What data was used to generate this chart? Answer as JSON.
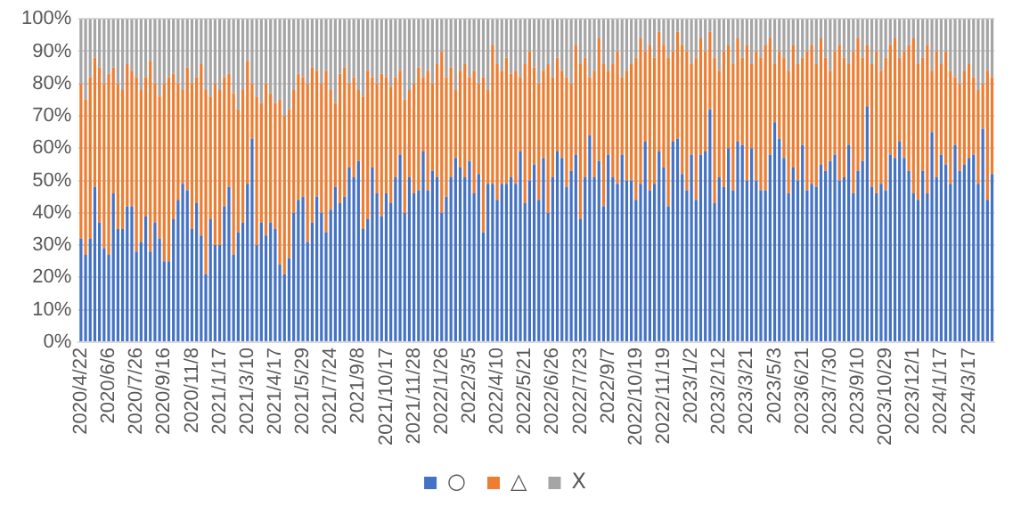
{
  "chart_data": {
    "type": "bar",
    "stacked": true,
    "grid": "y",
    "legend": "bottom",
    "categories": [
      "2020/4/22",
      null,
      null,
      null,
      null,
      null,
      "2020/6/6",
      null,
      null,
      null,
      null,
      null,
      "2020/7/26",
      null,
      null,
      null,
      null,
      null,
      "2020/9/16",
      null,
      null,
      null,
      null,
      null,
      "2020/11/8",
      null,
      null,
      null,
      null,
      null,
      "2021/1/17",
      null,
      null,
      null,
      null,
      null,
      "2021/3/10",
      null,
      null,
      null,
      null,
      null,
      "2021/4/17",
      null,
      null,
      null,
      null,
      null,
      "2021/5/29",
      null,
      null,
      null,
      null,
      null,
      "2021/7/24",
      null,
      null,
      null,
      null,
      null,
      "2021/9/8",
      null,
      null,
      null,
      null,
      null,
      "2021/10/17",
      null,
      null,
      null,
      null,
      null,
      "2021/11/28",
      null,
      null,
      null,
      null,
      null,
      "2022/1/26",
      null,
      null,
      null,
      null,
      null,
      "2022/3/5",
      null,
      null,
      null,
      null,
      null,
      "2022/4/10",
      null,
      null,
      null,
      null,
      null,
      "2022/5/21",
      null,
      null,
      null,
      null,
      null,
      "2022/6/26",
      null,
      null,
      null,
      null,
      null,
      "2022/7/23",
      null,
      null,
      null,
      null,
      null,
      "2022/9/7",
      null,
      null,
      null,
      null,
      null,
      "2022/10/19",
      null,
      null,
      null,
      null,
      null,
      "2022/11/19",
      null,
      null,
      null,
      null,
      null,
      "2023/1/2",
      null,
      null,
      null,
      null,
      null,
      "2023/2/12",
      null,
      null,
      null,
      null,
      null,
      "2023/3/21",
      null,
      null,
      null,
      null,
      null,
      "2023/5/3",
      null,
      null,
      null,
      null,
      null,
      "2023/6/21",
      null,
      null,
      null,
      null,
      null,
      "2023/7/30",
      null,
      null,
      null,
      null,
      null,
      "2023/9/10",
      null,
      null,
      null,
      null,
      null,
      "2023/10/29",
      null,
      null,
      null,
      null,
      null,
      "2023/12/1",
      null,
      null,
      null,
      null,
      null,
      "2024/1/17",
      null,
      null,
      null,
      null,
      null,
      "2024/3/17",
      null,
      null,
      null,
      null,
      null
    ],
    "series": [
      {
        "name": "○",
        "color": "#4472c4",
        "values": [
          32,
          27,
          32,
          48,
          37,
          29,
          27,
          46,
          35,
          35,
          42,
          42,
          28,
          31,
          39,
          28,
          37,
          32,
          25,
          25,
          38,
          44,
          49,
          47,
          35,
          43,
          33,
          21,
          38,
          30,
          30,
          42,
          48,
          27,
          34,
          37,
          49,
          63,
          30,
          37,
          33,
          37,
          35,
          24,
          21,
          26,
          40,
          44,
          45,
          31,
          37,
          45,
          40,
          34,
          41,
          48,
          43,
          45,
          54,
          51,
          56,
          35,
          38,
          54,
          46,
          39,
          46,
          43,
          51,
          58,
          40,
          51,
          46,
          47,
          59,
          47,
          53,
          51,
          40,
          45,
          51,
          57,
          54,
          51,
          56,
          46,
          52,
          34,
          49,
          49,
          44,
          49,
          49,
          51,
          49,
          59,
          43,
          50,
          55,
          44,
          57,
          40,
          51,
          59,
          57,
          48,
          53,
          58,
          38,
          51,
          64,
          51,
          56,
          42,
          58,
          51,
          49,
          58,
          50,
          50,
          44,
          49,
          62,
          47,
          49,
          59,
          54,
          42,
          62,
          63,
          52,
          47,
          58,
          44,
          58,
          59,
          72,
          43,
          51,
          48,
          60,
          47,
          62,
          61,
          50,
          60,
          50,
          47,
          47,
          58,
          68,
          63,
          57,
          46,
          54,
          50,
          61,
          47,
          49,
          48,
          55,
          53,
          56,
          58,
          50,
          51,
          61,
          46,
          53,
          56,
          73,
          48,
          46,
          49,
          47,
          58,
          57,
          62,
          57,
          53,
          46,
          44,
          53,
          46,
          65,
          51,
          58,
          55,
          49,
          61,
          53,
          55,
          57,
          58,
          49,
          66,
          44,
          52
        ]
      },
      {
        "name": "△",
        "color": "#ed7d31",
        "values": [
          48,
          48,
          50,
          40,
          48,
          51,
          56,
          39,
          45,
          43,
          44,
          42,
          54,
          47,
          43,
          59,
          43,
          44,
          55,
          57,
          45,
          36,
          29,
          38,
          45,
          39,
          53,
          57,
          38,
          50,
          48,
          40,
          35,
          50,
          38,
          41,
          38,
          17,
          46,
          37,
          47,
          40,
          39,
          51,
          49,
          46,
          38,
          39,
          37,
          49,
          48,
          39,
          40,
          50,
          37,
          26,
          40,
          40,
          26,
          31,
          22,
          41,
          46,
          28,
          34,
          44,
          36,
          36,
          31,
          26,
          35,
          27,
          34,
          38,
          23,
          37,
          27,
          35,
          50,
          37,
          34,
          21,
          30,
          35,
          26,
          38,
          28,
          48,
          29,
          43,
          42,
          35,
          39,
          32,
          35,
          23,
          43,
          40,
          30,
          36,
          27,
          46,
          31,
          29,
          27,
          34,
          27,
          34,
          48,
          37,
          18,
          33,
          38,
          44,
          26,
          35,
          41,
          24,
          34,
          36,
          44,
          45,
          28,
          45,
          39,
          37,
          38,
          46,
          28,
          33,
          40,
          43,
          28,
          44,
          36,
          31,
          24,
          45,
          33,
          42,
          32,
          39,
          32,
          27,
          42,
          26,
          40,
          41,
          45,
          36,
          18,
          27,
          31,
          38,
          38,
          36,
          27,
          43,
          43,
          38,
          39,
          35,
          28,
          32,
          42,
          37,
          25,
          44,
          41,
          32,
          19,
          38,
          44,
          35,
          41,
          34,
          37,
          26,
          33,
          39,
          48,
          42,
          35,
          46,
          19,
          39,
          28,
          35,
          35,
          21,
          27,
          29,
          29,
          24,
          29,
          14,
          40,
          30
        ]
      },
      {
        "name": "X",
        "color": "#a5a5a5",
        "values": [
          20,
          25,
          18,
          12,
          15,
          20,
          17,
          15,
          20,
          22,
          14,
          16,
          18,
          22,
          18,
          13,
          20,
          24,
          20,
          18,
          17,
          20,
          22,
          15,
          20,
          18,
          14,
          22,
          24,
          20,
          22,
          18,
          17,
          23,
          28,
          22,
          13,
          20,
          24,
          26,
          20,
          23,
          26,
          25,
          30,
          28,
          22,
          17,
          18,
          20,
          15,
          16,
          20,
          16,
          22,
          26,
          17,
          15,
          20,
          18,
          22,
          24,
          16,
          18,
          20,
          17,
          18,
          21,
          18,
          16,
          25,
          22,
          20,
          15,
          18,
          16,
          20,
          14,
          10,
          18,
          15,
          22,
          16,
          14,
          18,
          16,
          20,
          18,
          22,
          8,
          14,
          16,
          12,
          17,
          16,
          18,
          14,
          10,
          15,
          20,
          16,
          14,
          18,
          12,
          16,
          18,
          20,
          8,
          14,
          12,
          18,
          16,
          6,
          14,
          16,
          14,
          10,
          18,
          16,
          14,
          12,
          6,
          10,
          8,
          12,
          4,
          8,
          12,
          10,
          4,
          8,
          10,
          14,
          12,
          6,
          10,
          4,
          12,
          16,
          10,
          8,
          14,
          6,
          12,
          8,
          14,
          10,
          12,
          8,
          6,
          14,
          10,
          12,
          16,
          8,
          14,
          12,
          10,
          8,
          14,
          6,
          12,
          16,
          10,
          8,
          12,
          14,
          10,
          6,
          12,
          8,
          14,
          10,
          16,
          12,
          8,
          6,
          12,
          10,
          8,
          6,
          14,
          12,
          8,
          16,
          10,
          14,
          10,
          16,
          18,
          20,
          16,
          14,
          18,
          22,
          20,
          16,
          18
        ]
      }
    ],
    "ylim": [
      0,
      100
    ],
    "yticks": [
      {
        "value": 0,
        "label": "0%"
      },
      {
        "value": 10,
        "label": "10%"
      },
      {
        "value": 20,
        "label": "20%"
      },
      {
        "value": 30,
        "label": "30%"
      },
      {
        "value": 40,
        "label": "40%"
      },
      {
        "value": 50,
        "label": "50%"
      },
      {
        "value": 60,
        "label": "60%"
      },
      {
        "value": 70,
        "label": "70%"
      },
      {
        "value": 80,
        "label": "80%"
      },
      {
        "value": 90,
        "label": "90%"
      },
      {
        "value": 100,
        "label": "100%"
      }
    ]
  }
}
